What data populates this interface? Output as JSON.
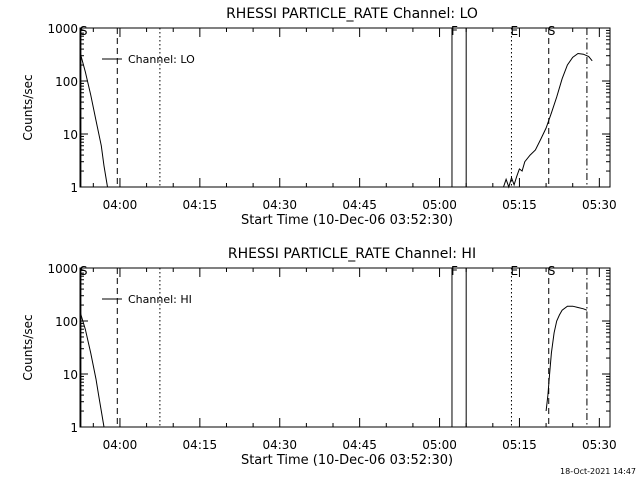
{
  "timestamp": "18-Oct-2021 14:47",
  "chart_data": [
    {
      "type": "line",
      "title": "RHESSI PARTICLE_RATE Channel: LO",
      "xlabel": "Start Time (10-Dec-06 03:52:30)",
      "ylabel": "Counts/sec",
      "yscale": "log",
      "xlim": [
        "03:52:30",
        "05:32:00"
      ],
      "ylim": [
        1,
        1000
      ],
      "x_ticks": [
        "04:00",
        "04:15",
        "04:30",
        "04:45",
        "05:00",
        "05:15",
        "05:30"
      ],
      "y_ticks": [
        "1",
        "10",
        "100",
        "1000"
      ],
      "legend": {
        "label": "Channel: LO",
        "position": "top-left"
      },
      "series": [
        {
          "segments": [
            {
              "x": [
                "03:52:30",
                "03:53:30",
                "03:54:30",
                "03:55:30",
                "03:56:30",
                "03:57:00",
                "03:57:40"
              ],
              "y": [
                350,
                150,
                55,
                18,
                6,
                2.5,
                1
              ]
            },
            {
              "x": [
                "05:12:00",
                "05:12:30",
                "05:13:00",
                "05:13:30",
                "05:14:00",
                "05:14:30",
                "05:15:00",
                "05:15:30",
                "05:16:00",
                "05:17:00",
                "05:18:00",
                "05:19:00",
                "05:20:00",
                "05:21:00",
                "05:22:00",
                "05:23:00",
                "05:24:00",
                "05:25:00",
                "05:26:00",
                "05:27:00",
                "05:28:00",
                "05:28:40"
              ],
              "y": [
                1,
                1.4,
                1,
                1.5,
                1.1,
                1.6,
                2.2,
                2,
                3,
                4,
                5,
                8,
                13,
                25,
                50,
                110,
                200,
                280,
                330,
                320,
                290,
                240
              ]
            }
          ]
        }
      ],
      "markers": [
        {
          "label": "S",
          "time": "03:52:40",
          "style": "solid"
        },
        {
          "label": "",
          "time": "03:59:30",
          "style": "dashed"
        },
        {
          "label": "",
          "time": "04:07:30",
          "style": "dotted"
        },
        {
          "label": "F",
          "time": "05:02:20",
          "style": "solid"
        },
        {
          "label": "",
          "time": "05:05:00",
          "style": "solid"
        },
        {
          "label": "E",
          "time": "05:13:30",
          "style": "dotted"
        },
        {
          "label": "S",
          "time": "05:20:30",
          "style": "dashed"
        },
        {
          "label": "",
          "time": "05:27:40",
          "style": "dashdot"
        }
      ]
    },
    {
      "type": "line",
      "title": "RHESSI PARTICLE_RATE Channel: HI",
      "xlabel": "Start Time (10-Dec-06 03:52:30)",
      "ylabel": "Counts/sec",
      "yscale": "log",
      "xlim": [
        "03:52:30",
        "05:32:00"
      ],
      "ylim": [
        1,
        1000
      ],
      "x_ticks": [
        "04:00",
        "04:15",
        "04:30",
        "04:45",
        "05:00",
        "05:15",
        "05:30"
      ],
      "y_ticks": [
        "1",
        "10",
        "100",
        "1000"
      ],
      "legend": {
        "label": "Channel: HI",
        "position": "top-left"
      },
      "series": [
        {
          "segments": [
            {
              "x": [
                "03:52:30",
                "03:53:30",
                "03:54:30",
                "03:55:30",
                "03:56:00",
                "03:56:30",
                "03:57:00"
              ],
              "y": [
                150,
                70,
                25,
                8,
                4,
                2,
                1
              ]
            },
            {
              "x": [
                "05:20:00",
                "05:20:20",
                "05:20:40",
                "05:21:00",
                "05:21:30",
                "05:22:00",
                "05:22:30",
                "05:23:00",
                "05:24:00",
                "05:25:00",
                "05:26:00",
                "05:27:00",
                "05:27:40"
              ],
              "y": [
                2,
                4,
                10,
                25,
                60,
                100,
                130,
                160,
                190,
                190,
                180,
                170,
                160
              ]
            }
          ]
        }
      ],
      "markers": [
        {
          "label": "S",
          "time": "03:52:40",
          "style": "solid"
        },
        {
          "label": "",
          "time": "03:59:30",
          "style": "dashed"
        },
        {
          "label": "",
          "time": "04:07:30",
          "style": "dotted"
        },
        {
          "label": "F",
          "time": "05:02:20",
          "style": "solid"
        },
        {
          "label": "",
          "time": "05:05:00",
          "style": "solid"
        },
        {
          "label": "E",
          "time": "05:13:30",
          "style": "dotted"
        },
        {
          "label": "S",
          "time": "05:20:30",
          "style": "dashed"
        },
        {
          "label": "",
          "time": "05:27:40",
          "style": "dashdot"
        }
      ]
    }
  ]
}
